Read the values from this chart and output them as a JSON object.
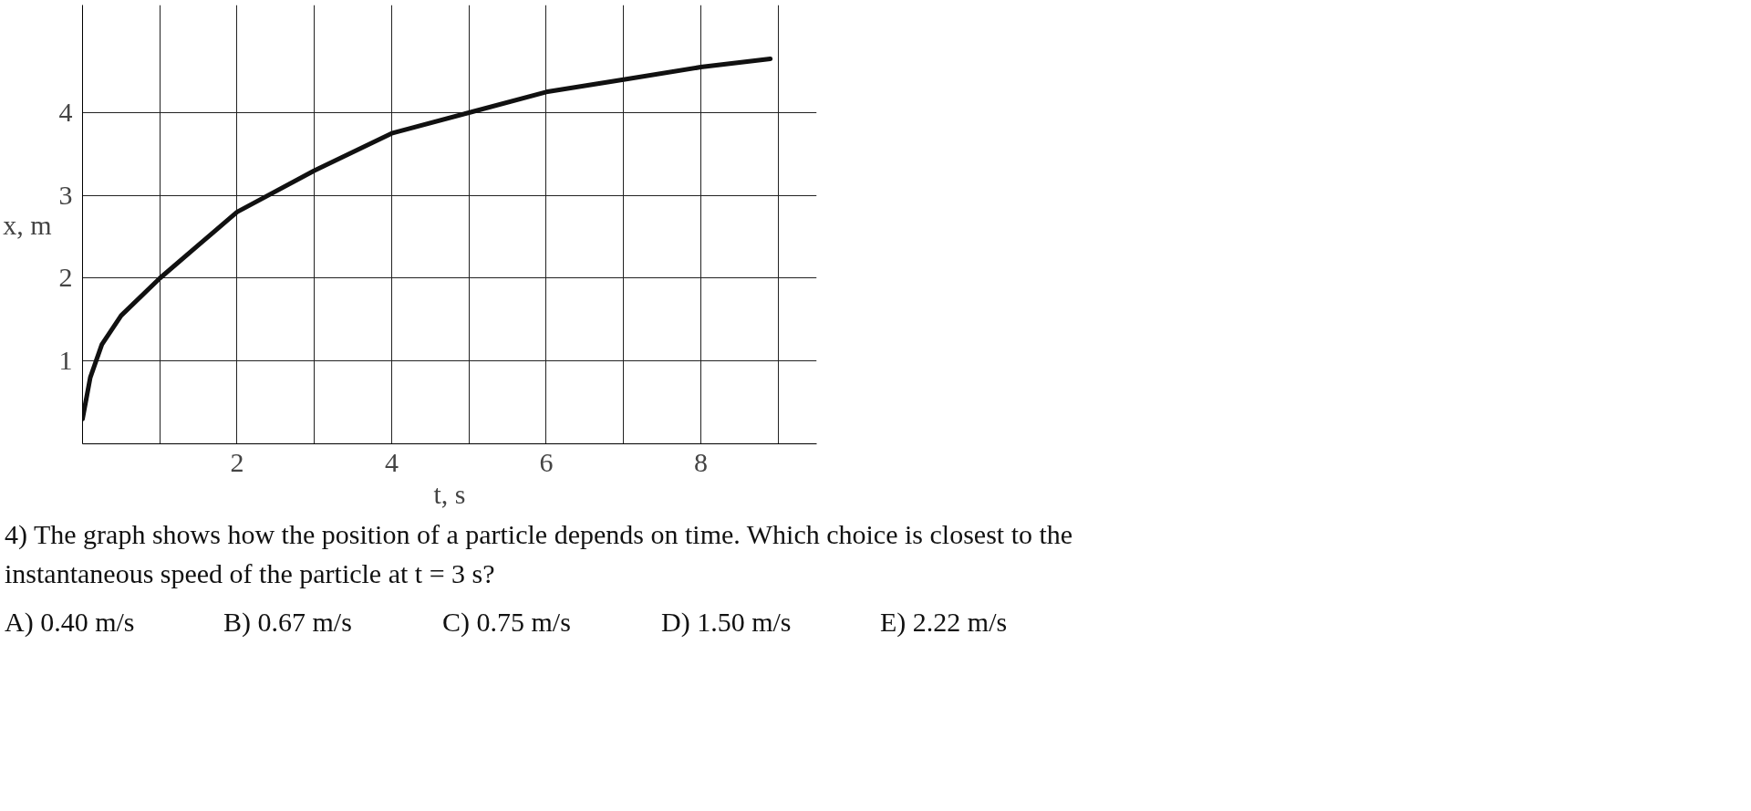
{
  "chart_data": {
    "type": "line",
    "xlabel": "t, s",
    "ylabel": "x, m",
    "x": [
      0,
      0.1,
      0.25,
      0.5,
      1,
      1.5,
      2,
      3,
      4,
      5,
      6,
      7,
      8,
      8.9
    ],
    "series": [
      {
        "color": "#111111",
        "values": [
          0.3,
          0.8,
          1.2,
          1.55,
          2.0,
          2.4,
          2.8,
          3.3,
          3.75,
          4.0,
          4.25,
          4.4,
          4.55,
          4.65
        ]
      }
    ],
    "xlim": [
      0,
      9.5
    ],
    "ylim": [
      0,
      5.3
    ],
    "xticks": [
      {
        "value": 1,
        "label": null
      },
      2,
      {
        "value": 3,
        "label": null
      },
      4,
      {
        "value": 5,
        "label": null
      },
      6,
      {
        "value": 7,
        "label": null
      },
      8,
      {
        "value": 9,
        "label": null
      }
    ],
    "yticks": [
      1,
      2,
      3,
      4
    ],
    "grid": true,
    "marker": "none",
    "line_style": "solid",
    "annotations": [
      "4) The graph shows how the position of a particle depends on time.  Which choice is closest to the instantaneous speed of the particle at t = 3 s?",
      "A) 0.40 m/s",
      "B) 0.67 m/s",
      "C) 0.75 m/s",
      "D) 1.50 m/s",
      "E) 2.22 m/s"
    ]
  }
}
